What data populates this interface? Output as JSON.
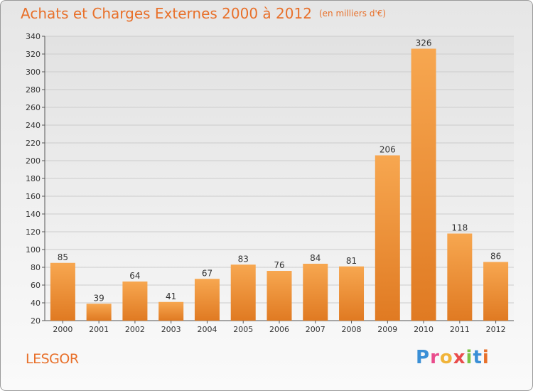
{
  "header": {
    "title": "Achats et Charges Externes 2000 à 2012",
    "unit_note": "(en milliers d'€)"
  },
  "footer": {
    "commune": "LESGOR",
    "logo": [
      "P",
      "r",
      "o",
      "x",
      "i",
      "t",
      "i"
    ]
  },
  "colors": {
    "bar_top": "#f7a750",
    "bar_bottom": "#e07a22",
    "title": "#e8702a",
    "grid": "#cccccc"
  },
  "chart_data": {
    "type": "bar",
    "title": "Achats et Charges Externes 2000 à 2012",
    "subtitle": "(en milliers d'€)",
    "xlabel": "",
    "ylabel": "",
    "categories": [
      "2000",
      "2001",
      "2002",
      "2003",
      "2004",
      "2005",
      "2006",
      "2007",
      "2008",
      "2009",
      "2010",
      "2011",
      "2012"
    ],
    "values": [
      85,
      39,
      64,
      41,
      67,
      83,
      76,
      84,
      81,
      206,
      326,
      118,
      86
    ],
    "ylim": [
      20,
      340
    ],
    "yticks": [
      20,
      40,
      60,
      80,
      100,
      120,
      140,
      160,
      180,
      200,
      220,
      240,
      260,
      280,
      300,
      320,
      340
    ],
    "grid": true
  }
}
